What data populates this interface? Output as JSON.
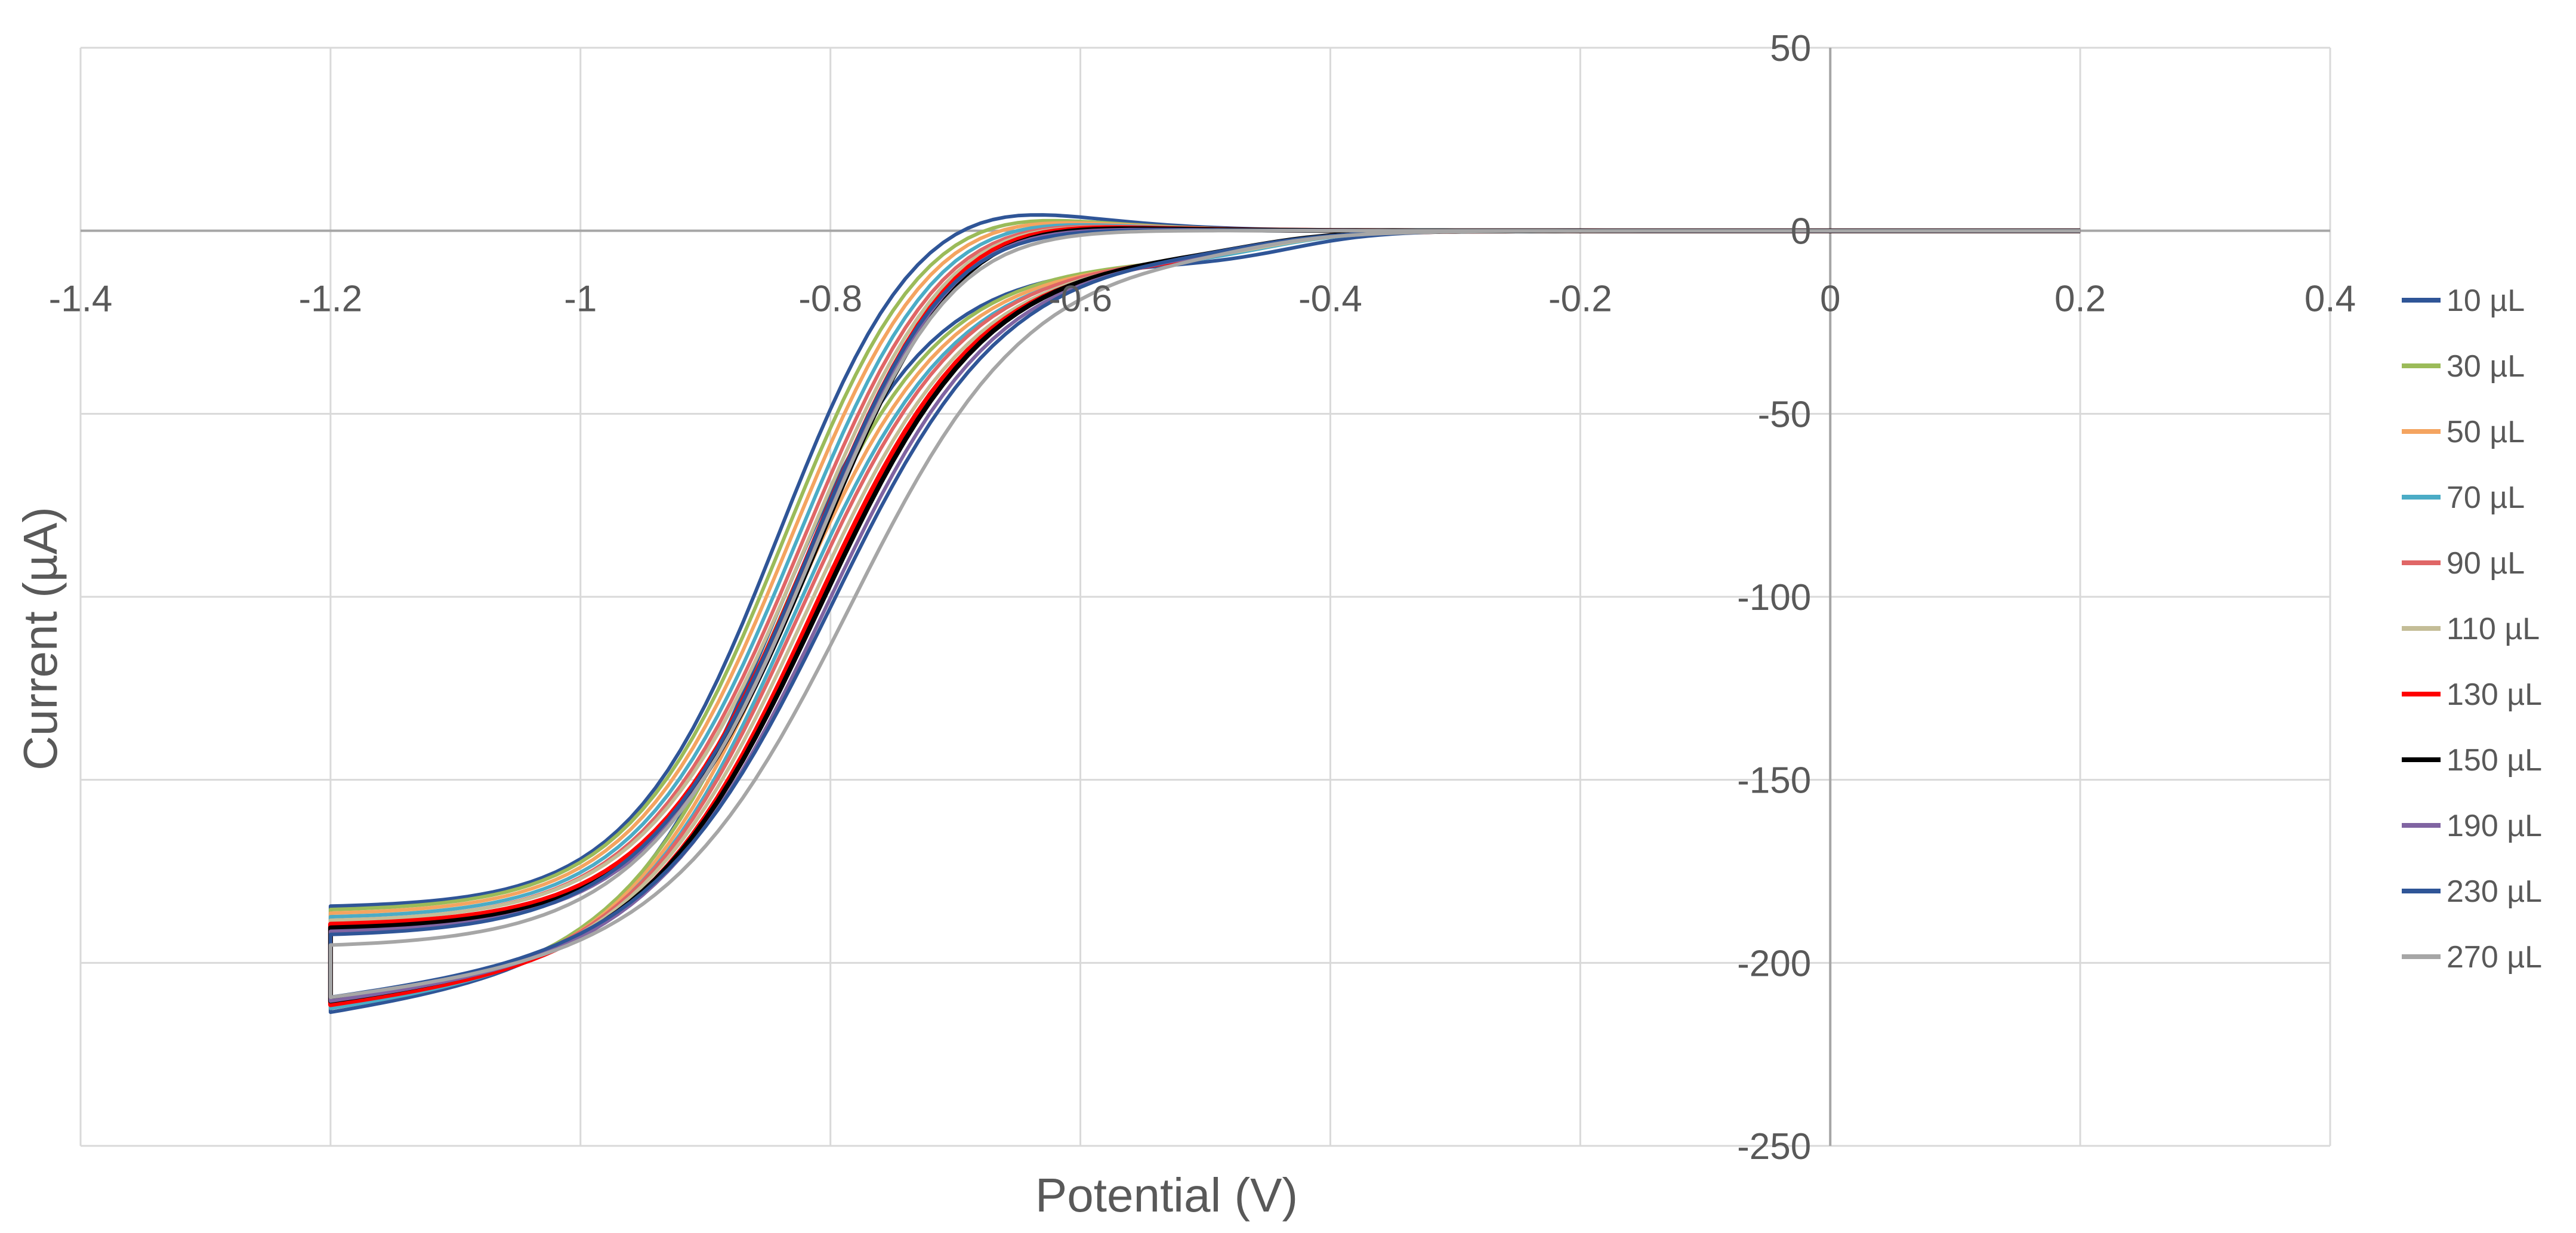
{
  "chart_data": {
    "type": "line",
    "title": "",
    "xlabel": "Potential (V)",
    "ylabel": "Current (µA)",
    "xlim": [
      -1.4,
      0.4
    ],
    "ylim": [
      -250,
      50
    ],
    "xticks": [
      -1.4,
      -1.2,
      -1,
      -0.8,
      -0.6,
      -0.4,
      -0.2,
      0,
      0.2,
      0.4
    ],
    "xtick_labels": [
      "-1.4",
      "-1.2",
      "-1",
      "-0.8",
      "-0.6",
      "-0.4",
      "-0.2",
      "0",
      "0.2",
      "0.4"
    ],
    "yticks": [
      50,
      0,
      -50,
      -100,
      -150,
      -200,
      -250
    ],
    "ytick_labels": [
      "50",
      "0",
      "-50",
      "-100",
      "-150",
      "-200",
      "-250"
    ],
    "grid": true,
    "legend_position": "right",
    "series": [
      {
        "name": "10 µL",
        "color": "#2F5597",
        "params": {
          "ox": 20,
          "e0": -0.84,
          "w": 0.06,
          "b": 0.245,
          "ef": -0.63,
          "sf": 0.05,
          "er": -0.66,
          "sr": 0.055,
          "ih": -9,
          "eh": -0.43,
          "sh": 0.035,
          "s": 0.0
        }
      },
      {
        "name": "30 µL",
        "color": "#9BBB59",
        "params": {
          "ox": 19,
          "e0": -0.835,
          "w": 0.062,
          "b": 0.236,
          "ef": -0.645,
          "sf": 0.05,
          "er": -0.675,
          "sr": 0.055,
          "ih": -8,
          "eh": -0.45,
          "sh": 0.035,
          "s": 0.05
        }
      },
      {
        "name": "50 µL",
        "color": "#F4A460",
        "params": {
          "ox": 18,
          "e0": -0.83,
          "w": 0.063,
          "b": 0.228,
          "ef": -0.65,
          "sf": 0.052,
          "er": -0.68,
          "sr": 0.057,
          "ih": -8,
          "eh": -0.45,
          "sh": 0.035,
          "s": 0.1
        }
      },
      {
        "name": "70 µL",
        "color": "#4BACC6",
        "params": {
          "ox": 17,
          "e0": -0.825,
          "w": 0.064,
          "b": 0.223,
          "ef": -0.655,
          "sf": 0.052,
          "er": -0.685,
          "sr": 0.057,
          "ih": -8,
          "eh": -0.45,
          "sh": 0.035,
          "s": 0.15
        }
      },
      {
        "name": "90 µL",
        "color": "#E06666",
        "params": {
          "ox": 16,
          "e0": -0.82,
          "w": 0.065,
          "b": 0.218,
          "ef": -0.66,
          "sf": 0.054,
          "er": -0.69,
          "sr": 0.058,
          "ih": -7,
          "eh": -0.45,
          "sh": 0.035,
          "s": 0.2
        }
      },
      {
        "name": "110 µL",
        "color": "#C4BD97",
        "params": {
          "ox": 16,
          "e0": -0.815,
          "w": 0.066,
          "b": 0.214,
          "ef": -0.665,
          "sf": 0.054,
          "er": -0.695,
          "sr": 0.058,
          "ih": -7,
          "eh": -0.45,
          "sh": 0.035,
          "s": 0.25
        }
      },
      {
        "name": "130 µL",
        "color": "#FF0000",
        "params": {
          "ox": 15,
          "e0": -0.81,
          "w": 0.066,
          "b": 0.21,
          "ef": -0.67,
          "sf": 0.055,
          "er": -0.7,
          "sr": 0.06,
          "ih": -7,
          "eh": -0.46,
          "sh": 0.035,
          "s": 0.3
        }
      },
      {
        "name": "150 µL",
        "color": "#000000",
        "params": {
          "ox": 14,
          "e0": -0.805,
          "w": 0.067,
          "b": 0.206,
          "ef": -0.675,
          "sf": 0.056,
          "er": -0.705,
          "sr": 0.06,
          "ih": -6,
          "eh": -0.46,
          "sh": 0.035,
          "s": 0.35
        }
      },
      {
        "name": "190 µL",
        "color": "#8064A2",
        "params": {
          "ox": 13,
          "e0": -0.8,
          "w": 0.068,
          "b": 0.2,
          "ef": -0.7,
          "sf": 0.06,
          "er": -0.73,
          "sr": 0.063,
          "ih": -6,
          "eh": -0.46,
          "sh": 0.035,
          "s": 0.4
        }
      },
      {
        "name": "230 µL",
        "color": "#2F5597",
        "params": {
          "ox": 12,
          "e0": -0.795,
          "w": 0.07,
          "b": 0.195,
          "ef": -0.72,
          "sf": 0.065,
          "er": -0.75,
          "sr": 0.065,
          "ih": -5,
          "eh": -0.46,
          "sh": 0.035,
          "s": 0.45
        }
      },
      {
        "name": "270 µL",
        "color": "#A6A6A6",
        "params": {
          "ox": 9,
          "e0": -0.78,
          "w": 0.072,
          "b": 0.18,
          "ef": -0.74,
          "sf": 0.07,
          "er": -0.78,
          "sr": 0.07,
          "ih": -5,
          "eh": -0.46,
          "sh": 0.035,
          "s": 0.5
        }
      }
    ]
  }
}
